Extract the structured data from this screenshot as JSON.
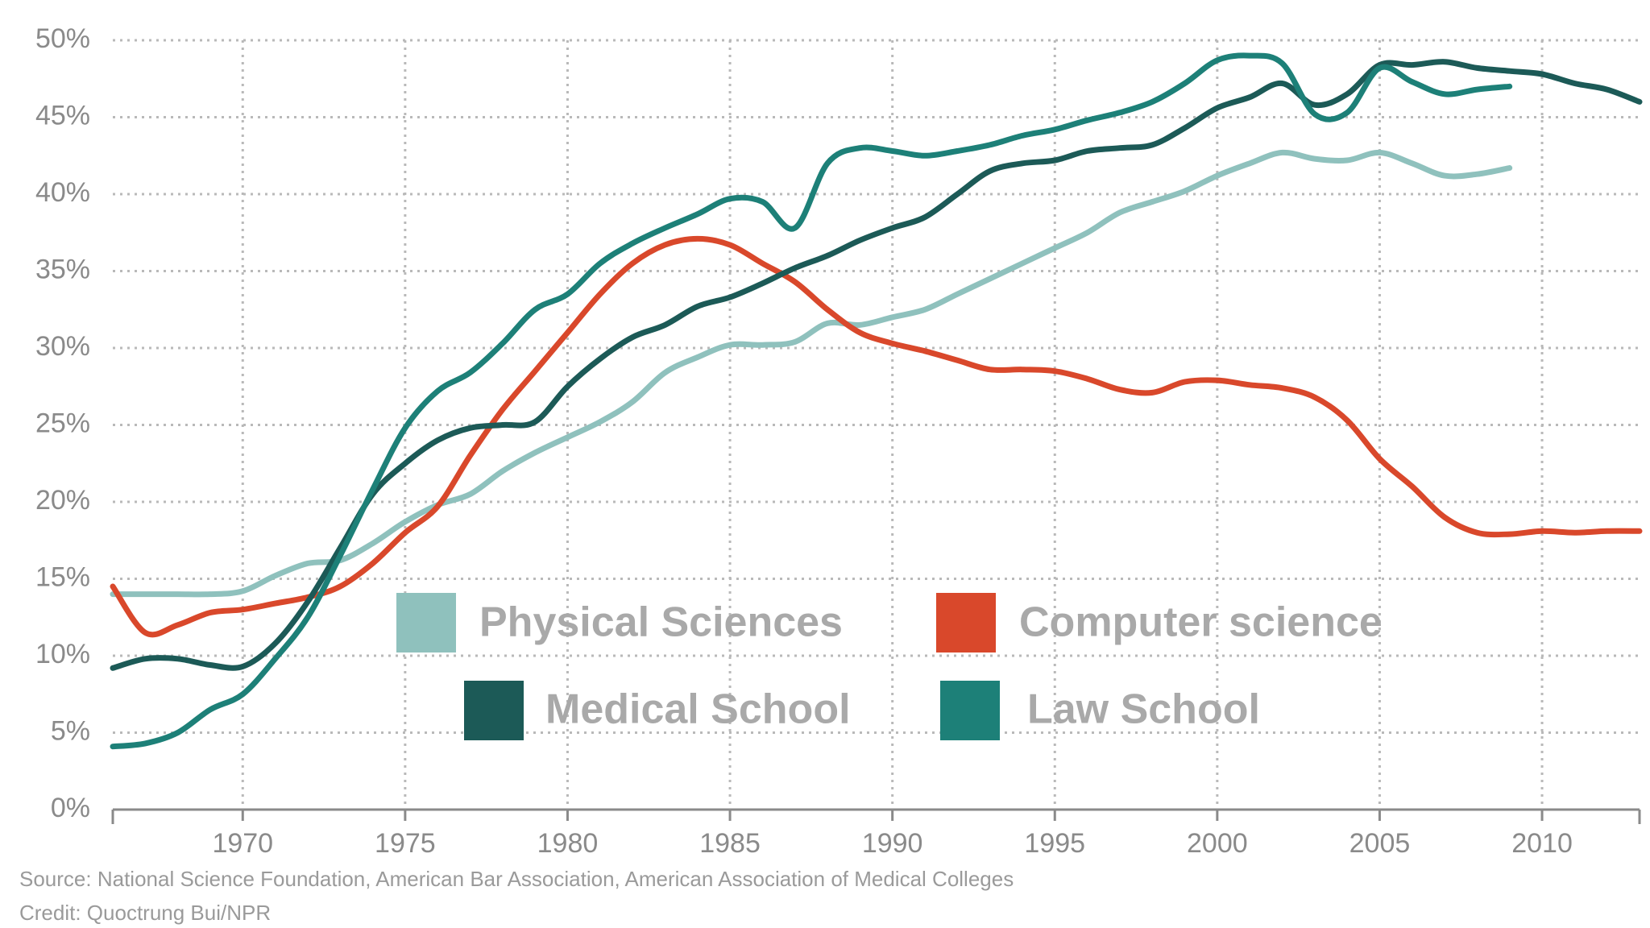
{
  "chart_data": {
    "type": "line",
    "ylim": [
      0,
      50
    ],
    "xlim": [
      1966,
      2013
    ],
    "y_ticks": [
      "0%",
      "5%",
      "10%",
      "15%",
      "20%",
      "25%",
      "30%",
      "35%",
      "40%",
      "45%",
      "50%"
    ],
    "x_ticks": [
      "1970",
      "1975",
      "1980",
      "1985",
      "1990",
      "1995",
      "2000",
      "2005",
      "2010"
    ],
    "grid": true,
    "legend_position": "center",
    "series": [
      {
        "name": "Physical Sciences",
        "color": "#8fc1bd",
        "points": [
          [
            1966,
            14
          ],
          [
            1967,
            14
          ],
          [
            1968,
            14
          ],
          [
            1969,
            14
          ],
          [
            1970,
            14.2
          ],
          [
            1971,
            15.2
          ],
          [
            1972,
            16
          ],
          [
            1973,
            16.2
          ],
          [
            1974,
            17.3
          ],
          [
            1975,
            18.7
          ],
          [
            1976,
            19.8
          ],
          [
            1977,
            20.5
          ],
          [
            1978,
            22
          ],
          [
            1979,
            23.2
          ],
          [
            1980,
            24.2
          ],
          [
            1981,
            25.2
          ],
          [
            1982,
            26.5
          ],
          [
            1983,
            28.4
          ],
          [
            1984,
            29.4
          ],
          [
            1985,
            30.2
          ],
          [
            1986,
            30.2
          ],
          [
            1987,
            30.4
          ],
          [
            1988,
            31.6
          ],
          [
            1989,
            31.5
          ],
          [
            1990,
            32
          ],
          [
            1991,
            32.5
          ],
          [
            1992,
            33.5
          ],
          [
            1993,
            34.5
          ],
          [
            1994,
            35.5
          ],
          [
            1995,
            36.5
          ],
          [
            1996,
            37.5
          ],
          [
            1997,
            38.8
          ],
          [
            1998,
            39.5
          ],
          [
            1999,
            40.2
          ],
          [
            2000,
            41.2
          ],
          [
            2001,
            42
          ],
          [
            2002,
            42.7
          ],
          [
            2003,
            42.3
          ],
          [
            2004,
            42.2
          ],
          [
            2005,
            42.7
          ],
          [
            2006,
            42
          ],
          [
            2007,
            41.2
          ],
          [
            2008,
            41.3
          ],
          [
            2009,
            41.7
          ]
        ]
      },
      {
        "name": "Computer science",
        "color": "#d9482b",
        "points": [
          [
            1966,
            14.5
          ],
          [
            1967,
            11.5
          ],
          [
            1968,
            12
          ],
          [
            1969,
            12.8
          ],
          [
            1970,
            13
          ],
          [
            1971,
            13.4
          ],
          [
            1972,
            13.8
          ],
          [
            1973,
            14.5
          ],
          [
            1974,
            16
          ],
          [
            1975,
            18
          ],
          [
            1976,
            19.7
          ],
          [
            1977,
            23
          ],
          [
            1978,
            26
          ],
          [
            1979,
            28.5
          ],
          [
            1980,
            31
          ],
          [
            1981,
            33.5
          ],
          [
            1982,
            35.5
          ],
          [
            1983,
            36.7
          ],
          [
            1984,
            37.1
          ],
          [
            1985,
            36.7
          ],
          [
            1986,
            35.5
          ],
          [
            1987,
            34.3
          ],
          [
            1988,
            32.5
          ],
          [
            1989,
            31
          ],
          [
            1990,
            30.3
          ],
          [
            1991,
            29.8
          ],
          [
            1992,
            29.2
          ],
          [
            1993,
            28.6
          ],
          [
            1994,
            28.6
          ],
          [
            1995,
            28.5
          ],
          [
            1996,
            28
          ],
          [
            1997,
            27.3
          ],
          [
            1998,
            27.1
          ],
          [
            1999,
            27.8
          ],
          [
            2000,
            27.9
          ],
          [
            2001,
            27.6
          ],
          [
            2002,
            27.4
          ],
          [
            2003,
            26.8
          ],
          [
            2004,
            25.3
          ],
          [
            2005,
            22.8
          ],
          [
            2006,
            21
          ],
          [
            2007,
            19
          ],
          [
            2008,
            18
          ],
          [
            2009,
            17.9
          ],
          [
            2010,
            18.1
          ],
          [
            2011,
            18
          ],
          [
            2012,
            18.1
          ],
          [
            2013,
            18.1
          ]
        ]
      },
      {
        "name": "Medical School",
        "color": "#1c5a57",
        "points": [
          [
            1966,
            9.2
          ],
          [
            1967,
            9.8
          ],
          [
            1968,
            9.8
          ],
          [
            1969,
            9.4
          ],
          [
            1970,
            9.3
          ],
          [
            1971,
            10.8
          ],
          [
            1972,
            13.5
          ],
          [
            1973,
            17
          ],
          [
            1974,
            20.5
          ],
          [
            1975,
            22.5
          ],
          [
            1976,
            24
          ],
          [
            1977,
            24.8
          ],
          [
            1978,
            25
          ],
          [
            1979,
            25.2
          ],
          [
            1980,
            27.5
          ],
          [
            1981,
            29.3
          ],
          [
            1982,
            30.7
          ],
          [
            1983,
            31.5
          ],
          [
            1984,
            32.7
          ],
          [
            1985,
            33.3
          ],
          [
            1986,
            34.2
          ],
          [
            1987,
            35.2
          ],
          [
            1988,
            36
          ],
          [
            1989,
            37
          ],
          [
            1990,
            37.8
          ],
          [
            1991,
            38.5
          ],
          [
            1992,
            40
          ],
          [
            1993,
            41.5
          ],
          [
            1994,
            42
          ],
          [
            1995,
            42.2
          ],
          [
            1996,
            42.8
          ],
          [
            1997,
            43
          ],
          [
            1998,
            43.2
          ],
          [
            1999,
            44.3
          ],
          [
            2000,
            45.6
          ],
          [
            2001,
            46.3
          ],
          [
            2002,
            47.2
          ],
          [
            2003,
            45.8
          ],
          [
            2004,
            46.5
          ],
          [
            2005,
            48.4
          ],
          [
            2006,
            48.4
          ],
          [
            2007,
            48.6
          ],
          [
            2008,
            48.2
          ],
          [
            2009,
            48
          ],
          [
            2010,
            47.8
          ],
          [
            2011,
            47.2
          ],
          [
            2012,
            46.8
          ],
          [
            2013,
            46
          ]
        ]
      },
      {
        "name": "Law School",
        "color": "#1d8078",
        "points": [
          [
            1966,
            4.1
          ],
          [
            1967,
            4.3
          ],
          [
            1968,
            5
          ],
          [
            1969,
            6.5
          ],
          [
            1970,
            7.5
          ],
          [
            1971,
            9.8
          ],
          [
            1972,
            12.5
          ],
          [
            1973,
            16.5
          ],
          [
            1974,
            20.8
          ],
          [
            1975,
            24.8
          ],
          [
            1976,
            27.2
          ],
          [
            1977,
            28.4
          ],
          [
            1978,
            30.3
          ],
          [
            1979,
            32.5
          ],
          [
            1980,
            33.5
          ],
          [
            1981,
            35.5
          ],
          [
            1982,
            36.8
          ],
          [
            1983,
            37.8
          ],
          [
            1984,
            38.7
          ],
          [
            1985,
            39.7
          ],
          [
            1986,
            39.5
          ],
          [
            1987,
            37.8
          ],
          [
            1988,
            42
          ],
          [
            1989,
            43
          ],
          [
            1990,
            42.8
          ],
          [
            1991,
            42.5
          ],
          [
            1992,
            42.8
          ],
          [
            1993,
            43.2
          ],
          [
            1994,
            43.8
          ],
          [
            1995,
            44.2
          ],
          [
            1996,
            44.8
          ],
          [
            1997,
            45.3
          ],
          [
            1998,
            46
          ],
          [
            1999,
            47.2
          ],
          [
            2000,
            48.7
          ],
          [
            2001,
            49
          ],
          [
            2002,
            48.5
          ],
          [
            2003,
            45.2
          ],
          [
            2004,
            45.3
          ],
          [
            2005,
            48.2
          ],
          [
            2006,
            47.3
          ],
          [
            2007,
            46.5
          ],
          [
            2008,
            46.8
          ],
          [
            2009,
            47
          ]
        ]
      }
    ],
    "legend": [
      {
        "label": "Physical Sciences",
        "color": "#8fc1bd"
      },
      {
        "label": "Computer science",
        "color": "#d9482b"
      },
      {
        "label": "Medical School",
        "color": "#1c5a57"
      },
      {
        "label": "Law School",
        "color": "#1d8078"
      }
    ]
  },
  "footer": {
    "source": "Source: National Science Foundation, American Bar Association, American Association of Medical Colleges",
    "credit": "Credit: Quoctrung Bui/NPR"
  }
}
